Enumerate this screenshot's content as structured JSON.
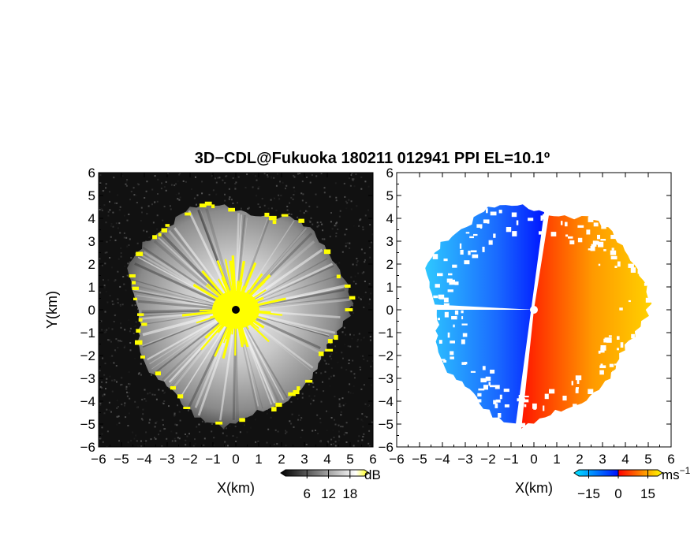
{
  "title": "3D−CDL@Fukuoka 180211 012941 PPI EL=10.1º",
  "chart_data": [
    {
      "type": "heatmap",
      "panel": "left",
      "quantity": "SNR",
      "xlabel": "X(km)",
      "ylabel": "Y(km)",
      "xlim": [
        -6,
        6
      ],
      "ylim": [
        -6,
        6
      ],
      "xticks": [
        "−6",
        "−5",
        "−4",
        "−3",
        "−2",
        "−1",
        "0",
        "1",
        "2",
        "3",
        "4",
        "5",
        "6"
      ],
      "yticks": [
        "−6",
        "−5",
        "−4",
        "−3",
        "−2",
        "−1",
        "0",
        "1",
        "2",
        "3",
        "4",
        "5",
        "6"
      ],
      "colorbar": {
        "unit": "dB",
        "ticks": [
          "6",
          "12",
          "18"
        ],
        "values": [
          6,
          12,
          18
        ],
        "range": [
          0,
          22
        ],
        "colors": [
          "#000000",
          "#ffffff",
          "#ffff00"
        ]
      },
      "max_range_km": 5.0,
      "background": "#111111",
      "saturated_color": "#ffff00"
    },
    {
      "type": "heatmap",
      "panel": "right",
      "quantity": "Doppler velocity",
      "xlabel": "X(km)",
      "xlim": [
        -6,
        6
      ],
      "ylim": [
        -6,
        6
      ],
      "xticks": [
        "−6",
        "−5",
        "−4",
        "−3",
        "−2",
        "−1",
        "0",
        "1",
        "2",
        "3",
        "4",
        "5",
        "6"
      ],
      "yticks": [
        "−6",
        "−5",
        "−4",
        "−3",
        "−2",
        "−1",
        "0",
        "1",
        "2",
        "3",
        "4",
        "5",
        "6"
      ],
      "colorbar": {
        "unit": "ms",
        "unit_sup": "−1",
        "ticks": [
          "−15",
          "0",
          "15"
        ],
        "values": [
          -15,
          0,
          15
        ],
        "range": [
          -20,
          20
        ],
        "colors": [
          "#00e5ff",
          "#0010ff",
          "#ff0000",
          "#ffff00"
        ]
      },
      "max_range_km": 5.0,
      "background": "#ffffff"
    }
  ]
}
